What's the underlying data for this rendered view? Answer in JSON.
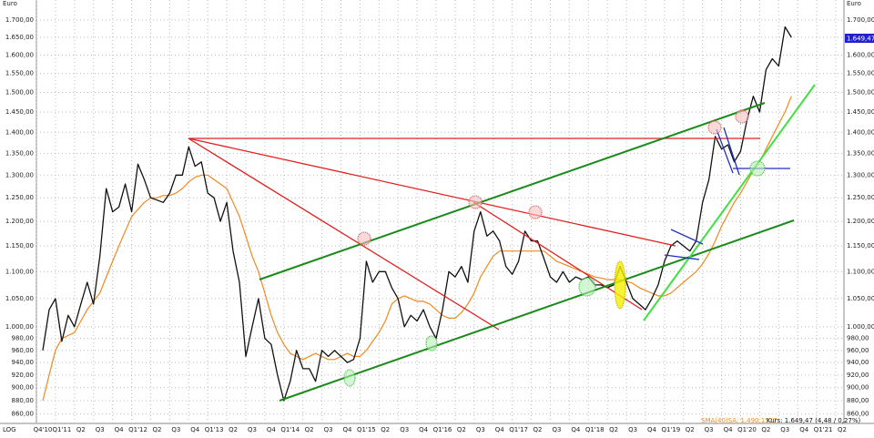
{
  "chart_data": {
    "type": "line",
    "y_unit": "Euro",
    "scale_label": "LOG",
    "log_scale": true,
    "grid": true,
    "last_price_label": "1.649,47",
    "categories": [
      "Q4'10",
      null,
      null,
      "Q1'11",
      null,
      null,
      "Q2",
      null,
      null,
      "Q3",
      null,
      null,
      "Q4",
      null,
      null,
      "Q1'12",
      null,
      null,
      "Q2",
      null,
      null,
      "Q3",
      null,
      null,
      "Q4",
      null,
      null,
      "Q1'13",
      null,
      null,
      "Q2",
      null,
      null,
      "Q3",
      null,
      null,
      "Q4",
      null,
      null,
      "Q1'14",
      null,
      null,
      "Q2",
      null,
      null,
      "Q3",
      null,
      null,
      "Q4",
      null,
      null,
      "Q1'15",
      null,
      null,
      "Q2",
      null,
      null,
      "Q3",
      null,
      null,
      "Q4",
      null,
      null,
      "Q1'16",
      null,
      null,
      "Q2",
      null,
      null,
      "Q3",
      null,
      null,
      "Q4",
      null,
      null,
      "Q1'17",
      null,
      null,
      "Q2",
      null,
      null,
      "Q3",
      null,
      null,
      "Q4",
      null,
      null,
      "Q1'18",
      null,
      null,
      "Q2",
      null,
      null,
      "Q3",
      null,
      null,
      "Q4",
      null,
      null,
      "Q1'19",
      null,
      null,
      "Q2",
      null,
      null,
      "Q3",
      null,
      null,
      "Q4",
      null,
      null,
      "Q1'20",
      null,
      null,
      "Q2",
      null,
      null,
      "Q3",
      null,
      null,
      "Q4",
      null,
      null,
      "Q1'21",
      null,
      null,
      "Q2",
      null,
      null
    ],
    "series": [
      {
        "name": "Kurs: 1.649,47 (4,48 / 0,27%)",
        "color": "#111111",
        "values": [
          960,
          1030,
          1050,
          975,
          1020,
          1000,
          1040,
          1080,
          1040,
          1130,
          1270,
          1220,
          1230,
          1280,
          1220,
          1325,
          1290,
          1250,
          1245,
          1240,
          1260,
          1300,
          1300,
          1365,
          1320,
          1330,
          1260,
          1250,
          1200,
          1240,
          1140,
          1080,
          950,
          1000,
          1050,
          980,
          970,
          920,
          880,
          910,
          960,
          930,
          930,
          910,
          960,
          950,
          960,
          950,
          940,
          945,
          980,
          1120,
          1080,
          1100,
          1100,
          1070,
          1050,
          1000,
          1020,
          1010,
          1030,
          1000,
          980,
          1030,
          1100,
          1090,
          1110,
          1080,
          1180,
          1220,
          1170,
          1180,
          1160,
          1110,
          1095,
          1120,
          1180,
          1160,
          1160,
          1125,
          1090,
          1080,
          1100,
          1080,
          1090,
          1085,
          1090,
          1075,
          1075,
          1070,
          1075,
          1110,
          1080,
          1050,
          1040,
          1030,
          1050,
          1075,
          1120,
          1150,
          1160,
          1150,
          1140,
          1160,
          1240,
          1290,
          1390,
          1360,
          1370,
          1330,
          1355,
          1430,
          1490,
          1450,
          1560,
          1590,
          1570,
          1680,
          1650,
          null,
          null,
          null,
          null,
          null,
          null,
          null,
          null,
          null,
          null
        ]
      },
      {
        "name": "SMA(40)SA: 1.490,1577",
        "color": "#f0891e",
        "values": [
          880,
          920,
          960,
          980,
          985,
          990,
          1010,
          1030,
          1045,
          1060,
          1090,
          1120,
          1150,
          1180,
          1210,
          1225,
          1240,
          1250,
          1250,
          1255,
          1255,
          1260,
          1270,
          1285,
          1295,
          1300,
          1300,
          1290,
          1280,
          1270,
          1240,
          1210,
          1170,
          1130,
          1100,
          1060,
          1020,
          990,
          970,
          955,
          950,
          945,
          950,
          955,
          950,
          945,
          945,
          950,
          955,
          950,
          950,
          960,
          975,
          990,
          1010,
          1040,
          1050,
          1055,
          1050,
          1045,
          1045,
          1040,
          1030,
          1020,
          1015,
          1015,
          1025,
          1040,
          1060,
          1090,
          1110,
          1130,
          1140,
          1140,
          1140,
          1140,
          1140,
          1140,
          1140,
          1140,
          1130,
          1120,
          1115,
          1110,
          1105,
          1100,
          1095,
          1090,
          1088,
          1085,
          1085,
          1085,
          1082,
          1078,
          1070,
          1065,
          1060,
          1055,
          1055,
          1060,
          1070,
          1080,
          1090,
          1100,
          1115,
          1135,
          1160,
          1190,
          1215,
          1240,
          1260,
          1285,
          1310,
          1330,
          1360,
          1390,
          1420,
          1450,
          1490,
          null,
          null,
          null,
          null,
          null,
          null,
          null,
          null,
          null,
          null
        ]
      }
    ],
    "ylim": [
      846,
      1760
    ],
    "yticks": [
      {
        "value": 860,
        "label": "860,00"
      },
      {
        "value": 880,
        "label": "880,00"
      },
      {
        "value": 900,
        "label": "900,00"
      },
      {
        "value": 920,
        "label": "920,00"
      },
      {
        "value": 940,
        "label": "940,00"
      },
      {
        "value": 960,
        "label": "960,00"
      },
      {
        "value": 980,
        "label": "980,00"
      },
      {
        "value": 1000,
        "label": "1.000,00"
      },
      {
        "value": 1050,
        "label": "1.050,00"
      },
      {
        "value": 1100,
        "label": "1.100,00"
      },
      {
        "value": 1150,
        "label": "1.150,00"
      },
      {
        "value": 1200,
        "label": "1.200,00"
      },
      {
        "value": 1250,
        "label": "1.250,00"
      },
      {
        "value": 1300,
        "label": "1.300,00"
      },
      {
        "value": 1350,
        "label": "1.350,00"
      },
      {
        "value": 1400,
        "label": "1.400,00"
      },
      {
        "value": 1450,
        "label": "1.450,00"
      },
      {
        "value": 1500,
        "label": "1.500,00"
      },
      {
        "value": 1550,
        "label": "1.550,00"
      },
      {
        "value": 1600,
        "label": "1.600,00"
      },
      {
        "value": 1650,
        "label": "1.650,00"
      },
      {
        "value": 1700,
        "label": "1.700,00"
      }
    ]
  }
}
